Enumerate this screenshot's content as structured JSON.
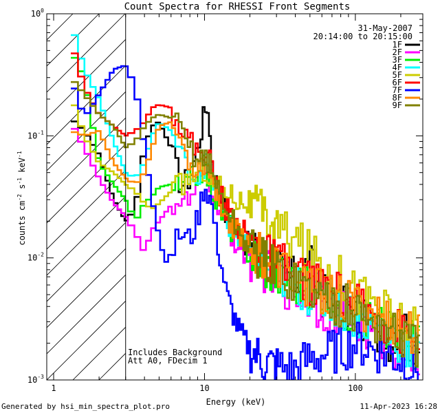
{
  "chart_data": {
    "type": "line",
    "title": "Count Spectra for RHESSI Front Segments",
    "xlabel": "Energy (keV)",
    "ylabel_parts": {
      "a": "counts cm",
      "b": "-2",
      "c": " s",
      "d": "-1",
      "e": " keV",
      "f": "-1"
    },
    "x_scale": "log",
    "y_scale": "log",
    "xlim": [
      0.9,
      280
    ],
    "ylim": [
      0.001,
      1
    ],
    "x_tick_labels": [
      {
        "v": 1,
        "label": "1"
      },
      {
        "v": 10,
        "label": "10"
      },
      {
        "v": 100,
        "label": "100"
      }
    ],
    "y_tick_labels": [
      {
        "v": 0.001,
        "base": "10",
        "exp": "-3"
      },
      {
        "v": 0.01,
        "base": "10",
        "exp": "-2"
      },
      {
        "v": 0.1,
        "base": "10",
        "exp": "-1"
      },
      {
        "v": 1,
        "base": "10",
        "exp": "0"
      }
    ],
    "date": "31-May-2007",
    "time_range": "20:14:00 to 20:15:00",
    "attenuator_cutoff_kev": 3,
    "annotations": [
      "Includes Background",
      "Att A0, FDecim 1"
    ],
    "series": [
      {
        "name": "1F",
        "color": "#000000",
        "points": [
          [
            1.3,
            0.14
          ],
          [
            1.6,
            0.11
          ],
          [
            2,
            0.07
          ],
          [
            2.5,
            0.03
          ],
          [
            3,
            0.02
          ],
          [
            3.5,
            0.025
          ],
          [
            4,
            0.08
          ],
          [
            4.5,
            0.12
          ],
          [
            5,
            0.13
          ],
          [
            6,
            0.08
          ],
          [
            7,
            0.04
          ],
          [
            8,
            0.045
          ],
          [
            9,
            0.08
          ],
          [
            10,
            0.15
          ],
          [
            10.5,
            0.19
          ],
          [
            11,
            0.08
          ],
          [
            12,
            0.04
          ],
          [
            14,
            0.022
          ],
          [
            17,
            0.016
          ],
          [
            20,
            0.012
          ],
          [
            25,
            0.009
          ],
          [
            30,
            0.008
          ],
          [
            40,
            0.0065
          ],
          [
            50,
            0.009
          ],
          [
            60,
            0.005
          ],
          [
            80,
            0.004
          ],
          [
            100,
            0.0033
          ],
          [
            130,
            0.0026
          ],
          [
            170,
            0.0022
          ],
          [
            220,
            0.0023
          ],
          [
            260,
            0.0019
          ]
        ]
      },
      {
        "name": "2F",
        "color": "#ff00ff",
        "points": [
          [
            1.3,
            0.13
          ],
          [
            1.6,
            0.08
          ],
          [
            2,
            0.045
          ],
          [
            2.5,
            0.028
          ],
          [
            3,
            0.022
          ],
          [
            3.5,
            0.016
          ],
          [
            4,
            0.011
          ],
          [
            4.5,
            0.017
          ],
          [
            5,
            0.02
          ],
          [
            6,
            0.027
          ],
          [
            7,
            0.03
          ],
          [
            8,
            0.028
          ],
          [
            9,
            0.04
          ],
          [
            10,
            0.05
          ],
          [
            11,
            0.04
          ],
          [
            12,
            0.03
          ],
          [
            14,
            0.018
          ],
          [
            17,
            0.012
          ],
          [
            20,
            0.01
          ],
          [
            25,
            0.008
          ],
          [
            30,
            0.0065
          ],
          [
            40,
            0.0055
          ],
          [
            50,
            0.0045
          ],
          [
            60,
            0.004
          ],
          [
            80,
            0.0035
          ],
          [
            100,
            0.003
          ],
          [
            130,
            0.0025
          ],
          [
            170,
            0.002
          ],
          [
            220,
            0.0017
          ],
          [
            260,
            0.0015
          ]
        ]
      },
      {
        "name": "3F",
        "color": "#00ee00",
        "points": [
          [
            1.3,
            0.5
          ],
          [
            1.6,
            0.3
          ],
          [
            2,
            0.06
          ],
          [
            2.5,
            0.04
          ],
          [
            3,
            0.03
          ],
          [
            3.5,
            0.02
          ],
          [
            4,
            0.028
          ],
          [
            4.5,
            0.032
          ],
          [
            5,
            0.038
          ],
          [
            6,
            0.04
          ],
          [
            7,
            0.036
          ],
          [
            8,
            0.042
          ],
          [
            9,
            0.05
          ],
          [
            10,
            0.055
          ],
          [
            11,
            0.04
          ],
          [
            12,
            0.03
          ],
          [
            14,
            0.02
          ],
          [
            17,
            0.014
          ],
          [
            20,
            0.011
          ],
          [
            25,
            0.009
          ],
          [
            30,
            0.0075
          ],
          [
            40,
            0.0065
          ],
          [
            50,
            0.0055
          ],
          [
            60,
            0.005
          ],
          [
            80,
            0.0042
          ],
          [
            100,
            0.0036
          ],
          [
            130,
            0.003
          ],
          [
            170,
            0.0025
          ],
          [
            220,
            0.0021
          ],
          [
            260,
            0.0018
          ]
        ]
      },
      {
        "name": "4F",
        "color": "#00ffff",
        "points": [
          [
            1.3,
            0.85
          ],
          [
            1.6,
            0.35
          ],
          [
            2,
            0.2
          ],
          [
            2.5,
            0.09
          ],
          [
            3,
            0.05
          ],
          [
            3.5,
            0.045
          ],
          [
            4,
            0.06
          ],
          [
            4.5,
            0.1
          ],
          [
            5,
            0.13
          ],
          [
            6,
            0.11
          ],
          [
            7,
            0.07
          ],
          [
            8,
            0.05
          ],
          [
            9,
            0.045
          ],
          [
            10,
            0.06
          ],
          [
            11,
            0.05
          ],
          [
            12,
            0.035
          ],
          [
            14,
            0.02
          ],
          [
            17,
            0.014
          ],
          [
            20,
            0.011
          ],
          [
            25,
            0.009
          ],
          [
            30,
            0.0075
          ],
          [
            40,
            0.006
          ],
          [
            50,
            0.0052
          ],
          [
            60,
            0.0046
          ],
          [
            80,
            0.004
          ],
          [
            100,
            0.0034
          ],
          [
            130,
            0.0028
          ],
          [
            170,
            0.0023
          ],
          [
            220,
            0.0019
          ],
          [
            260,
            0.0016
          ]
        ]
      },
      {
        "name": "5F",
        "color": "#cccc00",
        "points": [
          [
            1.3,
            0.22
          ],
          [
            1.6,
            0.1
          ],
          [
            2,
            0.06
          ],
          [
            2.5,
            0.05
          ],
          [
            3,
            0.04
          ],
          [
            3.5,
            0.035
          ],
          [
            4,
            0.028
          ],
          [
            4.5,
            0.025
          ],
          [
            5,
            0.028
          ],
          [
            6,
            0.035
          ],
          [
            7,
            0.04
          ],
          [
            8,
            0.045
          ],
          [
            9,
            0.05
          ],
          [
            10,
            0.055
          ],
          [
            11,
            0.045
          ],
          [
            12,
            0.04
          ],
          [
            14,
            0.035
          ],
          [
            17,
            0.03
          ],
          [
            20,
            0.028
          ],
          [
            25,
            0.022
          ],
          [
            30,
            0.018
          ],
          [
            40,
            0.014
          ],
          [
            50,
            0.011
          ],
          [
            60,
            0.009
          ],
          [
            80,
            0.007
          ],
          [
            100,
            0.0055
          ],
          [
            130,
            0.0045
          ],
          [
            170,
            0.0035
          ],
          [
            220,
            0.0028
          ],
          [
            260,
            0.0024
          ]
        ]
      },
      {
        "name": "6F",
        "color": "#ff0000",
        "points": [
          [
            1.3,
            0.6
          ],
          [
            1.6,
            0.25
          ],
          [
            2,
            0.15
          ],
          [
            2.5,
            0.12
          ],
          [
            3,
            0.1
          ],
          [
            3.5,
            0.11
          ],
          [
            4,
            0.13
          ],
          [
            4.5,
            0.17
          ],
          [
            5,
            0.18
          ],
          [
            6,
            0.17
          ],
          [
            7,
            0.12
          ],
          [
            8,
            0.09
          ],
          [
            9,
            0.075
          ],
          [
            10,
            0.08
          ],
          [
            11,
            0.06
          ],
          [
            12,
            0.04
          ],
          [
            14,
            0.025
          ],
          [
            17,
            0.018
          ],
          [
            20,
            0.014
          ],
          [
            25,
            0.011
          ],
          [
            30,
            0.009
          ],
          [
            40,
            0.0075
          ],
          [
            50,
            0.0065
          ],
          [
            60,
            0.0055
          ],
          [
            80,
            0.0048
          ],
          [
            100,
            0.004
          ],
          [
            130,
            0.0034
          ],
          [
            170,
            0.0028
          ],
          [
            220,
            0.0023
          ],
          [
            260,
            0.002
          ]
        ]
      },
      {
        "name": "7F",
        "color": "#0000ff",
        "points": [
          [
            1.3,
            0.3
          ],
          [
            1.6,
            0.14
          ],
          [
            2,
            0.22
          ],
          [
            2.5,
            0.35
          ],
          [
            3,
            0.38
          ],
          [
            3.5,
            0.25
          ],
          [
            4,
            0.08
          ],
          [
            4.5,
            0.03
          ],
          [
            5,
            0.015
          ],
          [
            5.5,
            0.009
          ],
          [
            6,
            0.011
          ],
          [
            7,
            0.016
          ],
          [
            8,
            0.014
          ],
          [
            9,
            0.02
          ],
          [
            10,
            0.04
          ],
          [
            11,
            0.03
          ],
          [
            12,
            0.015
          ],
          [
            14,
            0.005
          ],
          [
            17,
            0.0025
          ],
          [
            20,
            0.0018
          ],
          [
            25,
            0.0014
          ],
          [
            30,
            0.0013
          ],
          [
            40,
            0.0012
          ],
          [
            50,
            0.0015
          ],
          [
            60,
            0.0016
          ],
          [
            80,
            0.0018
          ],
          [
            100,
            0.002
          ],
          [
            130,
            0.0018
          ],
          [
            170,
            0.0016
          ],
          [
            220,
            0.0014
          ],
          [
            260,
            0.0012
          ]
        ]
      },
      {
        "name": "8F",
        "color": "#ff8800",
        "points": [
          [
            1.3,
            0.11
          ],
          [
            1.6,
            0.1
          ],
          [
            2,
            0.11
          ],
          [
            2.5,
            0.06
          ],
          [
            3,
            0.045
          ],
          [
            3.5,
            0.04
          ],
          [
            4,
            0.05
          ],
          [
            4.5,
            0.08
          ],
          [
            5,
            0.12
          ],
          [
            6,
            0.13
          ],
          [
            7,
            0.09
          ],
          [
            8,
            0.06
          ],
          [
            9,
            0.055
          ],
          [
            10,
            0.06
          ],
          [
            11,
            0.05
          ],
          [
            12,
            0.035
          ],
          [
            14,
            0.022
          ],
          [
            17,
            0.016
          ],
          [
            20,
            0.013
          ],
          [
            25,
            0.01
          ],
          [
            30,
            0.0085
          ],
          [
            40,
            0.007
          ],
          [
            50,
            0.006
          ],
          [
            60,
            0.0052
          ],
          [
            80,
            0.0045
          ],
          [
            100,
            0.004
          ],
          [
            130,
            0.0036
          ],
          [
            170,
            0.003
          ],
          [
            220,
            0.0026
          ],
          [
            260,
            0.0022
          ]
        ]
      },
      {
        "name": "9F",
        "color": "#808000",
        "points": [
          [
            1.3,
            0.3
          ],
          [
            1.6,
            0.22
          ],
          [
            2,
            0.15
          ],
          [
            2.5,
            0.12
          ],
          [
            3,
            0.08
          ],
          [
            3.5,
            0.09
          ],
          [
            4,
            0.12
          ],
          [
            4.5,
            0.14
          ],
          [
            5,
            0.15
          ],
          [
            6,
            0.14
          ],
          [
            7,
            0.11
          ],
          [
            8,
            0.08
          ],
          [
            9,
            0.065
          ],
          [
            10,
            0.07
          ],
          [
            11,
            0.055
          ],
          [
            12,
            0.04
          ],
          [
            14,
            0.025
          ],
          [
            17,
            0.016
          ],
          [
            20,
            0.012
          ],
          [
            25,
            0.0095
          ],
          [
            30,
            0.008
          ],
          [
            40,
            0.0065
          ],
          [
            50,
            0.0055
          ],
          [
            60,
            0.0048
          ],
          [
            80,
            0.0042
          ],
          [
            100,
            0.0036
          ],
          [
            130,
            0.003
          ],
          [
            170,
            0.0025
          ],
          [
            220,
            0.0021
          ],
          [
            260,
            0.0018
          ]
        ]
      }
    ]
  },
  "footer": {
    "left": "Generated by hsi_min_spectra_plot.pro",
    "right": "11-Apr-2023 16:28"
  }
}
